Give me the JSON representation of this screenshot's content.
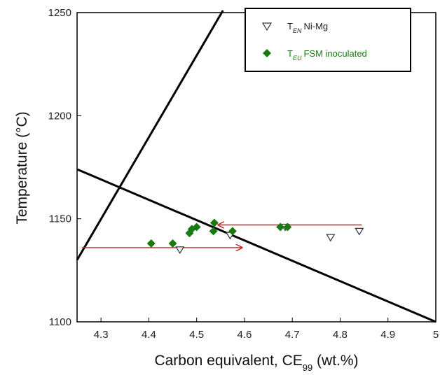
{
  "chart_data": {
    "type": "scatter",
    "xlabel_main": "Carbon equivalent, CE",
    "xlabel_sub": "99",
    "xlabel_tail": " (wt.%)",
    "ylabel": "Temperature (°C)",
    "xlim": [
      4.25,
      5.0
    ],
    "ylim": [
      1100,
      1250
    ],
    "xticks": [
      4.3,
      4.4,
      4.5,
      4.6,
      4.7,
      4.8,
      4.9,
      5
    ],
    "xtick_labels": [
      "4.3",
      "4.4",
      "4.5",
      "4.6",
      "4.7",
      "4.8",
      "4.9",
      "5"
    ],
    "yticks": [
      1100,
      1150,
      1200,
      1250
    ],
    "ytick_labels": [
      "1100",
      "1150",
      "1200",
      "1250"
    ],
    "grid": false,
    "legend_position": "top-right",
    "series": [
      {
        "name_main": "T",
        "name_sub": "EN",
        "name_tail": "Ni-Mg",
        "marker": "triangle-down-open",
        "color": "#333333",
        "points": [
          {
            "x": 4.465,
            "y": 1135
          },
          {
            "x": 4.57,
            "y": 1142
          },
          {
            "x": 4.685,
            "y": 1146
          },
          {
            "x": 4.78,
            "y": 1141
          },
          {
            "x": 4.84,
            "y": 1144
          }
        ]
      },
      {
        "name_main": "T",
        "name_sub": "EU",
        "name_tail": "FSM inoculated",
        "marker": "diamond-filled",
        "color": "#1a7a12",
        "points": [
          {
            "x": 4.405,
            "y": 1138
          },
          {
            "x": 4.45,
            "y": 1138
          },
          {
            "x": 4.485,
            "y": 1143
          },
          {
            "x": 4.49,
            "y": 1145
          },
          {
            "x": 4.5,
            "y": 1146
          },
          {
            "x": 4.535,
            "y": 1144
          },
          {
            "x": 4.537,
            "y": 1148
          },
          {
            "x": 4.575,
            "y": 1144
          },
          {
            "x": 4.675,
            "y": 1146
          },
          {
            "x": 4.69,
            "y": 1146
          }
        ]
      }
    ],
    "lines": [
      {
        "x": [
          4.25,
          4.555
        ],
        "y": [
          1130,
          1251
        ],
        "color": "#000000"
      },
      {
        "x": [
          4.25,
          5.0
        ],
        "y": [
          1174,
          1100
        ],
        "color": "#000000"
      }
    ],
    "arrows": [
      {
        "x1": 4.26,
        "y1": 1136,
        "x2": 4.595,
        "y2": 1136,
        "color": "#cc2222"
      },
      {
        "x1": 4.845,
        "y1": 1147,
        "x2": 4.545,
        "y2": 1147,
        "color": "#cc2222"
      }
    ]
  }
}
